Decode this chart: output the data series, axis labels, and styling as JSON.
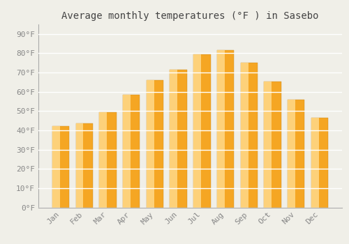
{
  "title": "Average monthly temperatures (°F ) in Sasebo",
  "months": [
    "Jan",
    "Feb",
    "Mar",
    "Apr",
    "May",
    "Jun",
    "Jul",
    "Aug",
    "Sep",
    "Oct",
    "Nov",
    "Dec"
  ],
  "values": [
    42,
    43.5,
    49.5,
    58.5,
    66,
    71.5,
    79.5,
    81.5,
    75,
    65.5,
    56,
    46.5
  ],
  "bar_color_main": "#F5A623",
  "bar_color_light": "#FDD17A",
  "bar_color_edge": "#C8871A",
  "background_color": "#F0EFE8",
  "grid_color": "#FFFFFF",
  "yticks": [
    0,
    10,
    20,
    30,
    40,
    50,
    60,
    70,
    80,
    90
  ],
  "ytick_labels": [
    "0°F",
    "10°F",
    "20°F",
    "30°F",
    "40°F",
    "50°F",
    "60°F",
    "70°F",
    "80°F",
    "90°F"
  ],
  "ylim": [
    0,
    95
  ],
  "title_fontsize": 10,
  "tick_fontsize": 8,
  "tick_color": "#888888",
  "font_family": "monospace",
  "title_color": "#444444"
}
